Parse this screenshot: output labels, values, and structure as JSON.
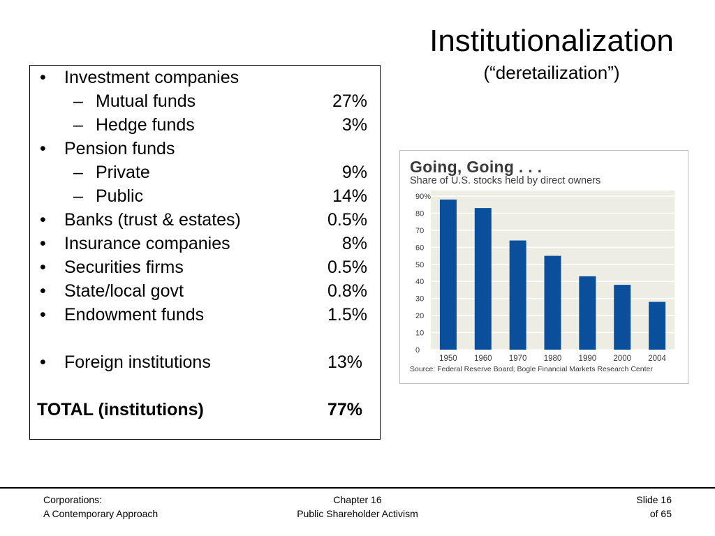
{
  "title": "Institutionalization",
  "subtitle": "(“deretailization”)",
  "holders": [
    {
      "marker": "•",
      "label": "Investment companies",
      "value": "",
      "level": 1,
      "bold": false
    },
    {
      "marker": "–",
      "label": "Mutual funds",
      "value": "27%",
      "level": 2,
      "bold": false
    },
    {
      "marker": "–",
      "label": "Hedge funds",
      "value": "3%",
      "level": 2,
      "bold": false
    },
    {
      "marker": "•",
      "label": "Pension funds",
      "value": "",
      "level": 1,
      "bold": false
    },
    {
      "marker": "–",
      "label": "Private",
      "value": "9%",
      "level": 2,
      "bold": false
    },
    {
      "marker": "–",
      "label": "Public",
      "value": "14%",
      "level": 2,
      "bold": false
    },
    {
      "marker": "•",
      "label": "Banks (trust & estates)",
      "value": "0.5%",
      "level": 1,
      "bold": false
    },
    {
      "marker": "•",
      "label": "Insurance companies",
      "value": "8%",
      "level": 1,
      "bold": false
    },
    {
      "marker": "•",
      "label": "Securities firms",
      "value": "0.5%",
      "level": 1,
      "bold": false
    },
    {
      "marker": "•",
      "label": "State/local govt",
      "value": "0.8%",
      "level": 1,
      "bold": false
    },
    {
      "marker": "•",
      "label": "Endowment funds",
      "value": "1.5%",
      "level": 1,
      "bold": false
    },
    {
      "marker": "•",
      "label": "Foreign institutions",
      "value": "13%",
      "level": 1,
      "bold": false,
      "gap_before": true
    },
    {
      "marker": "",
      "label": "TOTAL (institutions)",
      "value": "77%",
      "level": 0,
      "bold": true,
      "gap_before": true
    }
  ],
  "chart_data": {
    "type": "bar",
    "title": "Going, Going . . .",
    "subtitle": "Share of U.S. stocks held by direct owners",
    "categories": [
      "1950",
      "1960",
      "1970",
      "1980",
      "1990",
      "2000",
      "2004"
    ],
    "values": [
      88,
      83,
      64,
      55,
      43,
      38,
      28
    ],
    "ylim": [
      0,
      90
    ],
    "yticks": [
      "0",
      "10",
      "20",
      "30",
      "40",
      "50",
      "60",
      "70",
      "80",
      "90%"
    ],
    "grid": true,
    "source": "Source: Federal Reserve Board; Bogle Financial Markets Research Center",
    "colors": {
      "bar": "#0a4f9c",
      "plot_bg": "#eeede4",
      "text": "#3a3a3a"
    }
  },
  "footer": {
    "left_line1": "Corporations:",
    "left_line2": "A Contemporary Approach",
    "center_line1": "Chapter 16",
    "center_line2": "Public Shareholder Activism",
    "right_line1": "Slide 16",
    "right_line2": "of 65"
  }
}
